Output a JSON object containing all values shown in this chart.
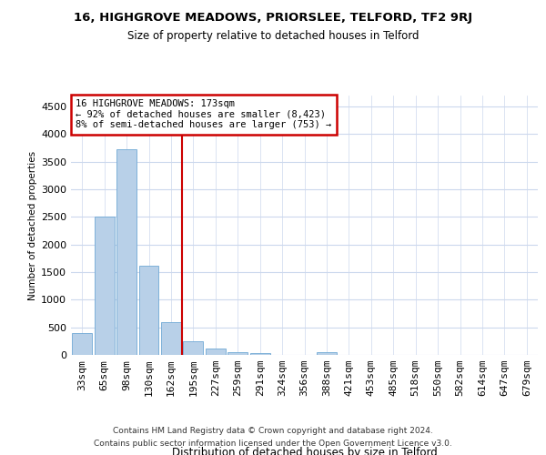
{
  "title_line1": "16, HIGHGROVE MEADOWS, PRIORSLEE, TELFORD, TF2 9RJ",
  "title_line2": "Size of property relative to detached houses in Telford",
  "xlabel": "Distribution of detached houses by size in Telford",
  "ylabel": "Number of detached properties",
  "categories": [
    "33sqm",
    "65sqm",
    "98sqm",
    "130sqm",
    "162sqm",
    "195sqm",
    "227sqm",
    "259sqm",
    "291sqm",
    "324sqm",
    "356sqm",
    "388sqm",
    "421sqm",
    "453sqm",
    "485sqm",
    "518sqm",
    "550sqm",
    "582sqm",
    "614sqm",
    "647sqm",
    "679sqm"
  ],
  "values": [
    390,
    2500,
    3730,
    1610,
    590,
    245,
    110,
    55,
    40,
    0,
    0,
    55,
    0,
    0,
    0,
    0,
    0,
    0,
    0,
    0,
    0
  ],
  "bar_color": "#b8d0e8",
  "bar_edgecolor": "#6fa8d5",
  "vline_index": 4,
  "vline_color": "#cc0000",
  "annotation_text": "16 HIGHGROVE MEADOWS: 173sqm\n← 92% of detached houses are smaller (8,423)\n8% of semi-detached houses are larger (753) →",
  "annotation_box_edgecolor": "#cc0000",
  "annotation_box_facecolor": "#ffffff",
  "ylim": [
    0,
    4700
  ],
  "yticks": [
    0,
    500,
    1000,
    1500,
    2000,
    2500,
    3000,
    3500,
    4000,
    4500
  ],
  "footer_line1": "Contains HM Land Registry data © Crown copyright and database right 2024.",
  "footer_line2": "Contains public sector information licensed under the Open Government Licence v3.0.",
  "bg_color": "#ffffff",
  "grid_color": "#ccd8ed"
}
